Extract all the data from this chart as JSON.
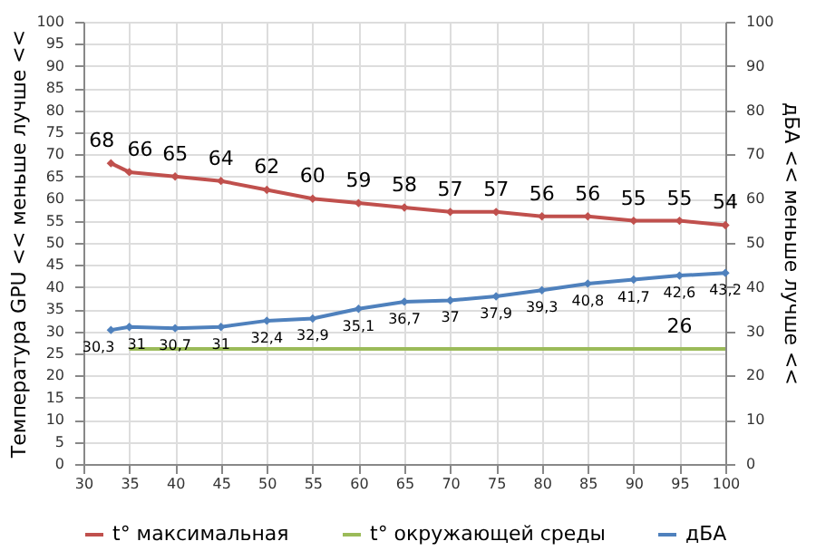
{
  "chart_data": {
    "type": "line",
    "xlabel": null,
    "ylabel": "Температура GPU << меньше лучше <<",
    "y2label": "дБА << меньше лучше <<",
    "xlim": [
      30,
      100
    ],
    "xticks": [
      30,
      35,
      40,
      45,
      50,
      55,
      60,
      65,
      70,
      75,
      80,
      85,
      90,
      95,
      100
    ],
    "ylim": [
      0,
      100
    ],
    "yticks": [
      0,
      5,
      10,
      15,
      20,
      25,
      30,
      35,
      40,
      45,
      50,
      55,
      60,
      65,
      70,
      75,
      80,
      85,
      90,
      95,
      100
    ],
    "y2lim": [
      0,
      100
    ],
    "y2ticks": [
      0,
      10,
      20,
      30,
      40,
      50,
      60,
      70,
      80,
      90,
      100
    ],
    "grid": true,
    "legend": "bottom",
    "line_style": "solid",
    "series": [
      {
        "name": "t° максимальная",
        "color": "#c0504d",
        "marker": "diamond",
        "x": [
          33,
          35,
          40,
          45,
          50,
          55,
          60,
          65,
          70,
          75,
          80,
          85,
          90,
          95,
          100
        ],
        "values": [
          68,
          66,
          65,
          64,
          62,
          60,
          59,
          58,
          57,
          57,
          56,
          56,
          55,
          55,
          54
        ],
        "value_labels": [
          "68",
          "66",
          "65",
          "64",
          "62",
          "60",
          "59",
          "58",
          "57",
          "57",
          "56",
          "56",
          "55",
          "55",
          "54"
        ]
      },
      {
        "name": "t° окружающей среды",
        "color": "#9bbb59",
        "marker": "none",
        "x": [
          35,
          40,
          45,
          50,
          55,
          60,
          65,
          70,
          75,
          80,
          85,
          90,
          95,
          100
        ],
        "values": [
          26,
          26,
          26,
          26,
          26,
          26,
          26,
          26,
          26,
          26,
          26,
          26,
          26,
          26
        ],
        "value_labels": [
          null,
          null,
          null,
          null,
          null,
          null,
          null,
          null,
          null,
          null,
          null,
          null,
          "26",
          null
        ]
      },
      {
        "name": "дБА",
        "color": "#4f81bd",
        "marker": "diamond",
        "axis": "y2",
        "x": [
          33,
          35,
          40,
          45,
          50,
          55,
          60,
          65,
          70,
          75,
          80,
          85,
          90,
          95,
          100
        ],
        "values": [
          30.3,
          31,
          30.7,
          31,
          32.4,
          32.9,
          35.1,
          36.7,
          37,
          37.9,
          39.3,
          40.8,
          41.7,
          42.6,
          43.2
        ],
        "value_labels": [
          "30,3",
          "31",
          "30,7",
          "31",
          "32,4",
          "32,9",
          "35,1",
          "36,7",
          "37",
          "37,9",
          "39,3",
          "40,8",
          "41,7",
          "42,6",
          "43,2"
        ]
      }
    ]
  }
}
